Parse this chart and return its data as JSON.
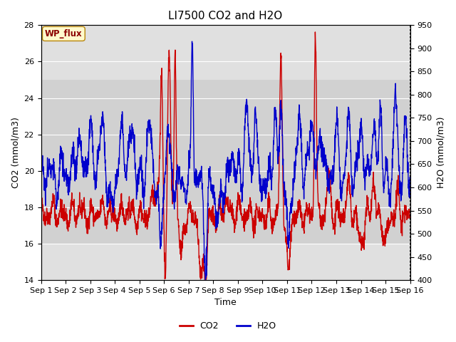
{
  "title": "LI7500 CO2 and H2O",
  "xlabel": "Time",
  "ylabel_left": "CO2 (mmol/m3)",
  "ylabel_right": "H2O (mmol/m3)",
  "xlim": [
    0,
    15
  ],
  "ylim_left": [
    14,
    28
  ],
  "ylim_right": [
    400,
    950
  ],
  "xtick_labels": [
    "Sep 1",
    "Sep 2",
    "Sep 3",
    "Sep 4",
    "Sep 5",
    "Sep 6",
    "Sep 7",
    "Sep 8",
    "Sep 9",
    "Sep 10",
    "Sep 11",
    "Sep 12",
    "Sep 13",
    "Sep 14",
    "Sep 15",
    "Sep 16"
  ],
  "yticks_left": [
    14,
    16,
    18,
    20,
    22,
    24,
    26,
    28
  ],
  "yticks_right": [
    400,
    450,
    500,
    550,
    600,
    650,
    700,
    750,
    800,
    850,
    900,
    950
  ],
  "co2_color": "#cc0000",
  "h2o_color": "#0000cc",
  "background_color": "#ffffff",
  "plot_bg_color": "#e0e0e0",
  "band_color": "#cccccc",
  "band_y1": 16.0,
  "band_y2": 25.0,
  "legend_label_co2": "CO2",
  "legend_label_h2o": "H2O",
  "annotation_text": "WP_flux",
  "title_fontsize": 11,
  "axis_fontsize": 9,
  "tick_fontsize": 8,
  "line_width": 1.0,
  "seed": 42,
  "n_points": 2000
}
